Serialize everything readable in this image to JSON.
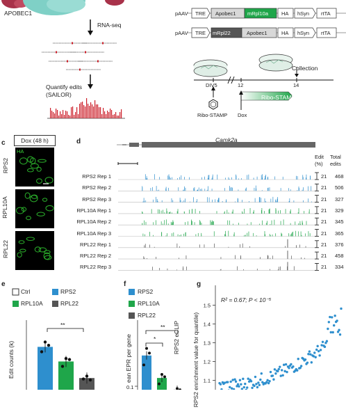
{
  "colors": {
    "rps2": "#2e8fce",
    "rpl10a": "#1fa64a",
    "rpl22": "#555555",
    "ctrl": "#ffffff",
    "edit_red": "#cc1f2a",
    "protein": "#7fd0c6",
    "ribo": "#a8324a",
    "neuron_green": "#2fc02f"
  },
  "panel_a": {
    "protein_label": "APOBEC1",
    "step1": "RNA-seq",
    "step2_line1": "Quantify edits",
    "step2_line2": "(SAILOR)"
  },
  "panel_b": {
    "constructs": [
      {
        "plasmid": "pAAV",
        "parts": [
          "TRE",
          "Apobec1",
          "mRpl10a",
          "HA",
          "hSyn",
          "rtTA"
        ]
      },
      {
        "plasmid": "pAAV",
        "parts": [
          "TRE",
          "mRpl22",
          "Apobec1",
          "HA",
          "hSyn",
          "rtTA"
        ]
      }
    ],
    "timeline": {
      "ticks": [
        "DIV5",
        "12",
        "14"
      ],
      "collection": "Collection",
      "bar_label": "Ribo-STAMP",
      "treat1": "Ribo-STAMP",
      "treat2": "Dox"
    }
  },
  "panel_c": {
    "letter": "c",
    "header": "Dox (48 h)",
    "stain": "HA",
    "rows": [
      "RPS2",
      "RPL10A",
      "RPL22"
    ]
  },
  "panel_d": {
    "letter": "d",
    "gene": "Camk2a",
    "col_edit": "Edit",
    "col_edit_unit": "(%)",
    "col_total": "Total",
    "col_total2": "edits",
    "tracks": [
      {
        "label": "RPS2 Rep 1",
        "scale": "21",
        "total": "468",
        "group": "rps2"
      },
      {
        "label": "RPS2 Rep 2",
        "scale": "21",
        "total": "506",
        "group": "rps2"
      },
      {
        "label": "RPS2 Rep 3",
        "scale": "21",
        "total": "327",
        "group": "rps2"
      },
      {
        "label": "RPL10A Rep 1",
        "scale": "21",
        "total": "329",
        "group": "rpl10a"
      },
      {
        "label": "RPL10A Rep 2",
        "scale": "21",
        "total": "345",
        "group": "rpl10a"
      },
      {
        "label": "RPL10A Rep 3",
        "scale": "21",
        "total": "365",
        "group": "rpl10a"
      },
      {
        "label": "RPL22 Rep 1",
        "scale": "21",
        "total": "376",
        "group": "rpl22"
      },
      {
        "label": "RPL22 Rep 2",
        "scale": "21",
        "total": "458",
        "group": "rpl22"
      },
      {
        "label": "RPL22 Rep 3",
        "scale": "21",
        "total": "334",
        "group": "rpl22"
      }
    ]
  },
  "panel_e": {
    "letter": "e",
    "legend": [
      "Ctrl",
      "RPS2",
      "RPL10A",
      "RPL22"
    ],
    "ylabel": "Edit counts (k)",
    "sig": "**"
  },
  "panel_f": {
    "letter": "f",
    "legend": [
      "RPS2",
      "RPL10A",
      "RPL22"
    ],
    "ylabel": "ean EPR per gene",
    "sig1": "*",
    "sig2": "**",
    "tick": "0.1"
  },
  "panel_g": {
    "letter": "g",
    "annotation": "R² = 0.67; P < 10⁻⁵",
    "ylabel_1": "RPS2 eCLIP",
    "ylabel_2": "RPS2 enrichment value for quantile)"
  },
  "chart_data": [
    {
      "type": "bar",
      "categories": [
        "RPS2",
        "RPL10A",
        "RPL22"
      ],
      "values": [
        360,
        285,
        200
      ],
      "points": [
        [
          335,
          385,
          368
        ],
        [
          260,
          300,
          295
        ],
        [
          195,
          210,
          190
        ]
      ],
      "ylabel": "Edit counts (k)"
    },
    {
      "type": "bar",
      "categories": [
        "RPS2",
        "RPL10A",
        "RPL22"
      ],
      "values": [
        0.23,
        0.135,
        0.085
      ],
      "points": [
        [
          0.19,
          0.26,
          0.24
        ],
        [
          0.11,
          0.15,
          0.14
        ],
        [
          0.08,
          0.09,
          0.085
        ]
      ],
      "ylabel": "ean EPR per gene",
      "ylim": [
        0.07,
        0.4
      ]
    },
    {
      "type": "scatter",
      "ylim": [
        1.05,
        1.55
      ],
      "yticks": [
        1.1,
        1.2,
        1.3,
        1.4,
        1.5
      ],
      "ylabel": "RPS2 eCLIP",
      "annotation": "R² = 0.67; P < 10⁻⁵"
    }
  ]
}
